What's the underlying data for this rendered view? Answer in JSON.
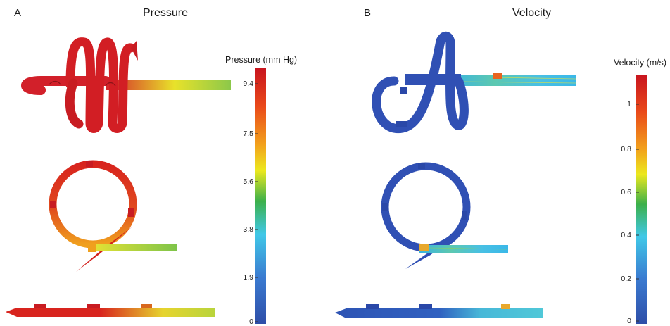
{
  "panel_a": {
    "letter": "A",
    "title": "Pressure",
    "colorbar": {
      "title": "Pressure (mm Hg)",
      "ticks": [
        "9.4",
        "7.5",
        "5.6",
        "3.8",
        "1.9",
        "0"
      ]
    }
  },
  "panel_b": {
    "letter": "B",
    "title": "Velocity",
    "colorbar": {
      "title": "Velocity (m/s)",
      "ticks": [
        "1",
        "0.8",
        "0.6",
        "0.4",
        "0.2",
        "0"
      ]
    }
  },
  "colors": {
    "high": "#d21e1e",
    "mid_high": "#f07a1e",
    "mid": "#e8e61e",
    "mid_low": "#3cb050",
    "low_mid": "#3cc8e0",
    "low": "#2e4fb0"
  }
}
